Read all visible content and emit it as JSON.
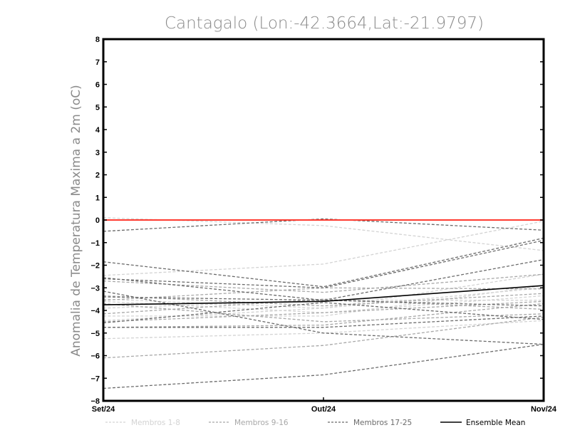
{
  "chart_data": {
    "type": "line",
    "title": "Cantagalo (Lon:-42.3664,Lat:-21.9797)",
    "ylabel": "Anomalia de Temperatura Maxima a 2m (oC)",
    "xlabel": "",
    "categories": [
      "Set/24",
      "Out/24",
      "Nov/24"
    ],
    "ylim": [
      -8,
      8
    ],
    "yticks": [
      -8,
      -7,
      -6,
      -5,
      -4,
      -3,
      -2,
      -1,
      0,
      1,
      2,
      3,
      4,
      5,
      6,
      7,
      8
    ],
    "grid": false,
    "legend_position": "bottom",
    "reference_line": {
      "value": 0,
      "color": "#ff3b30"
    },
    "groups": [
      {
        "name": "Membros 1-8",
        "color": "#d3d3d3",
        "dashed": true,
        "series": [
          {
            "values": [
              0.1,
              -0.25,
              -1.35
            ]
          },
          {
            "values": [
              -2.45,
              -1.95,
              -0.05
            ]
          },
          {
            "values": [
              -3.5,
              -3.9,
              -2.4
            ]
          },
          {
            "values": [
              -3.9,
              -3.55,
              -3.55
            ]
          },
          {
            "values": [
              -4.25,
              -4.25,
              -2.9
            ]
          },
          {
            "values": [
              -4.45,
              -3.9,
              -3.0
            ]
          },
          {
            "values": [
              -5.25,
              -5.0,
              -4.45
            ]
          },
          {
            "values": [
              -3.6,
              -4.1,
              -3.35
            ]
          }
        ]
      },
      {
        "name": "Membros 9-16",
        "color": "#a8a8a8",
        "dashed": true,
        "series": [
          {
            "values": [
              -2.7,
              -3.2,
              -2.4
            ]
          },
          {
            "values": [
              -3.55,
              -3.0,
              -3.05
            ]
          },
          {
            "values": [
              -3.35,
              -3.8,
              -3.25
            ]
          },
          {
            "values": [
              -4.5,
              -4.1,
              -3.6
            ]
          },
          {
            "values": [
              -6.1,
              -5.55,
              -4.3
            ]
          },
          {
            "values": [
              -4.75,
              -4.65,
              -3.7
            ]
          },
          {
            "values": [
              -4.15,
              -3.5,
              -3.95
            ]
          },
          {
            "values": [
              -3.7,
              -4.5,
              -4.15
            ]
          }
        ]
      },
      {
        "name": "Membros 17-25",
        "color": "#6b6b6b",
        "dashed": true,
        "series": [
          {
            "values": [
              -0.5,
              0.05,
              -0.45
            ]
          },
          {
            "values": [
              -1.85,
              -2.95,
              -0.8
            ]
          },
          {
            "values": [
              -2.55,
              -3.55,
              -1.75
            ]
          },
          {
            "values": [
              -2.6,
              -3.0,
              -0.9
            ]
          },
          {
            "values": [
              -3.15,
              -5.0,
              -5.5
            ]
          },
          {
            "values": [
              -3.4,
              -3.55,
              -3.8
            ]
          },
          {
            "values": [
              -4.55,
              -3.65,
              -4.4
            ]
          },
          {
            "values": [
              -4.75,
              -4.75,
              -4.25
            ]
          },
          {
            "values": [
              -7.45,
              -6.85,
              -5.5
            ]
          }
        ]
      },
      {
        "name": "Ensemble Mean",
        "color": "#000000",
        "dashed": false,
        "series": [
          {
            "values": [
              -3.75,
              -3.6,
              -2.9
            ]
          }
        ]
      }
    ]
  }
}
